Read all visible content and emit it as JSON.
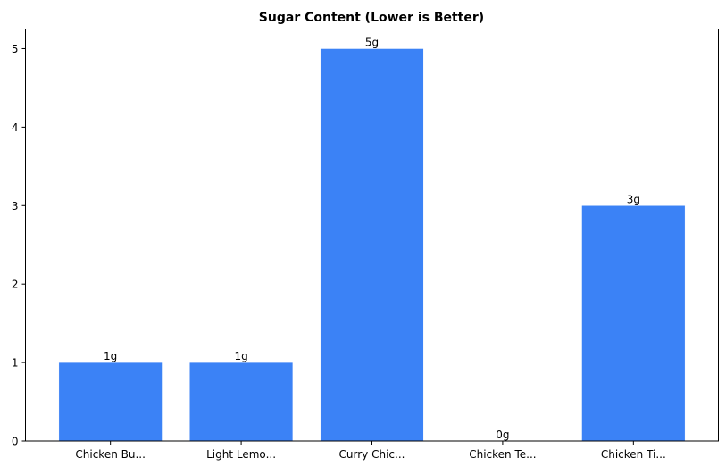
{
  "chart_data": {
    "type": "bar",
    "title": "Sugar Content (Lower is Better)",
    "xlabel": "",
    "ylabel": "",
    "categories": [
      "Chicken Bu...",
      "Light Lemo...",
      "Curry Chic...",
      "Chicken Te...",
      "Chicken Ti..."
    ],
    "values": [
      1,
      1,
      5,
      0,
      3
    ],
    "data_labels": [
      "1g",
      "1g",
      "5g",
      "0g",
      "3g"
    ],
    "ylim": [
      0,
      5.25
    ],
    "yticks": [
      0,
      1,
      2,
      3,
      4,
      5
    ],
    "grid": false,
    "bar_color": "#3b82f6"
  }
}
